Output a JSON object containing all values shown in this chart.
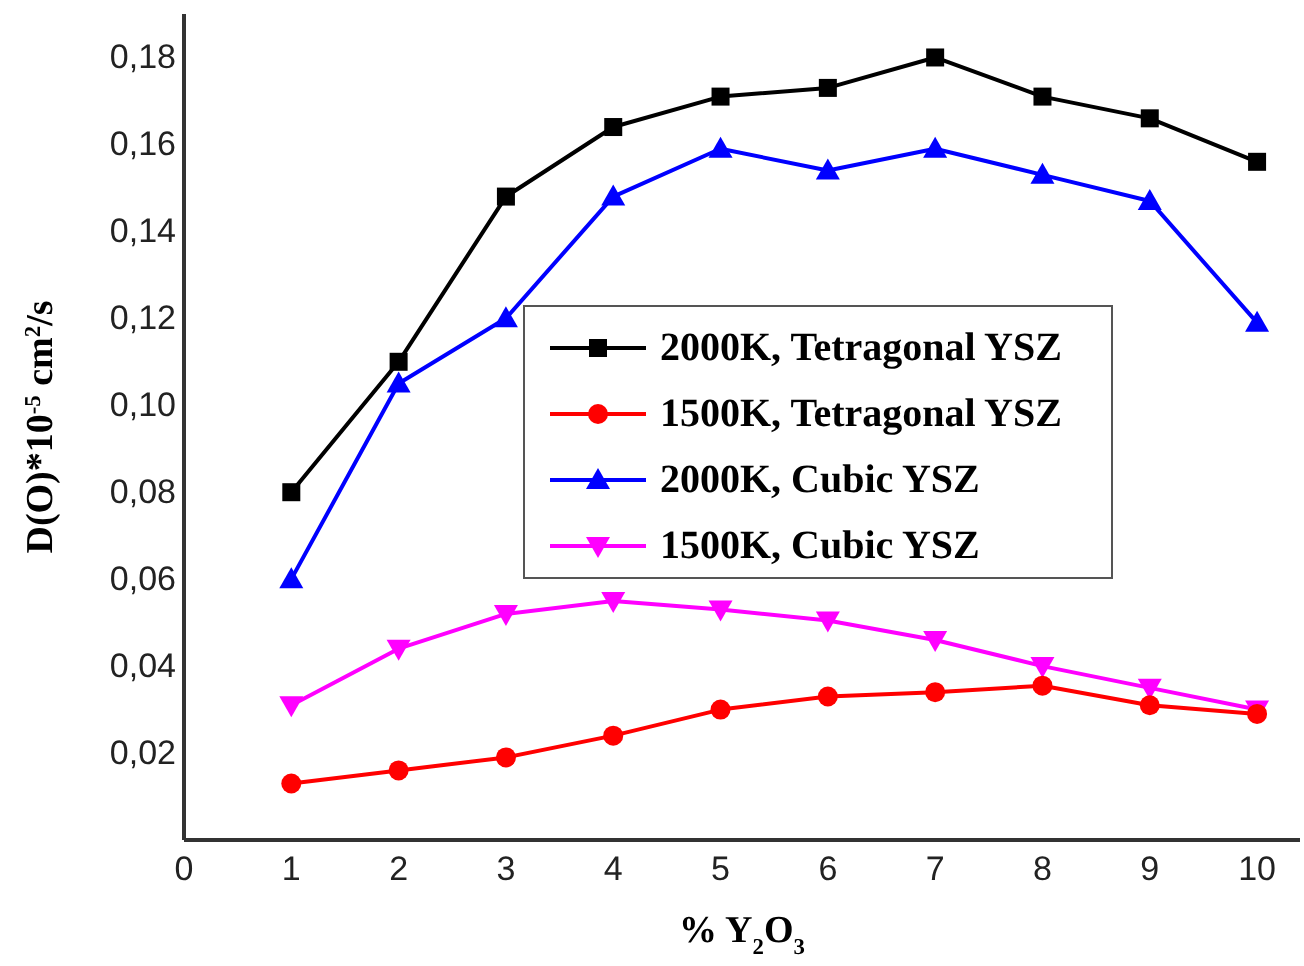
{
  "chart_data": {
    "type": "line",
    "xlabel": "% Y$_{2}$O$_{3}$",
    "ylabel": "D(O)*10$^{-5}$ cm$^{2}$/s",
    "x": [
      1,
      2,
      3,
      4,
      5,
      6,
      7,
      8,
      9,
      10
    ],
    "xlim": [
      0,
      10.4
    ],
    "xticks": [
      0,
      1,
      2,
      3,
      4,
      5,
      6,
      7,
      8,
      9,
      10
    ],
    "ylim": [
      0,
      0.19
    ],
    "yticks": [
      {
        "value": 0.02,
        "label": "0,02"
      },
      {
        "value": 0.04,
        "label": "0,04"
      },
      {
        "value": 0.06,
        "label": "0,06"
      },
      {
        "value": 0.08,
        "label": "0,08"
      },
      {
        "value": 0.1,
        "label": "0,10"
      },
      {
        "value": 0.12,
        "label": "0,12"
      },
      {
        "value": 0.14,
        "label": "0,14"
      },
      {
        "value": 0.16,
        "label": "0,16"
      },
      {
        "value": 0.18,
        "label": "0,18"
      }
    ],
    "grid": false,
    "legend": "center right",
    "line_style": "solid",
    "series": [
      {
        "name": "2000K, Tetragonal YSZ",
        "color": "#000000",
        "marker": "square",
        "values": [
          0.08,
          0.11,
          0.148,
          0.164,
          0.171,
          0.173,
          0.18,
          0.171,
          0.166,
          0.156
        ]
      },
      {
        "name": "1500K, Tetragonal YSZ",
        "color": "#ff0000",
        "marker": "circle",
        "values": [
          0.013,
          0.016,
          0.019,
          0.024,
          0.03,
          0.033,
          0.034,
          0.0355,
          0.031,
          0.029
        ]
      },
      {
        "name": "2000K, Cubic YSZ",
        "color": "#0000ff",
        "marker": "triangle",
        "values": [
          0.06,
          0.105,
          0.12,
          0.148,
          0.159,
          0.154,
          0.159,
          0.153,
          0.147,
          0.119
        ]
      },
      {
        "name": "1500K, Cubic YSZ",
        "color": "#ff00ff",
        "marker": "triangle-down",
        "values": [
          0.031,
          0.044,
          0.052,
          0.055,
          0.053,
          0.0505,
          0.046,
          0.04,
          0.035,
          0.03
        ]
      }
    ]
  }
}
